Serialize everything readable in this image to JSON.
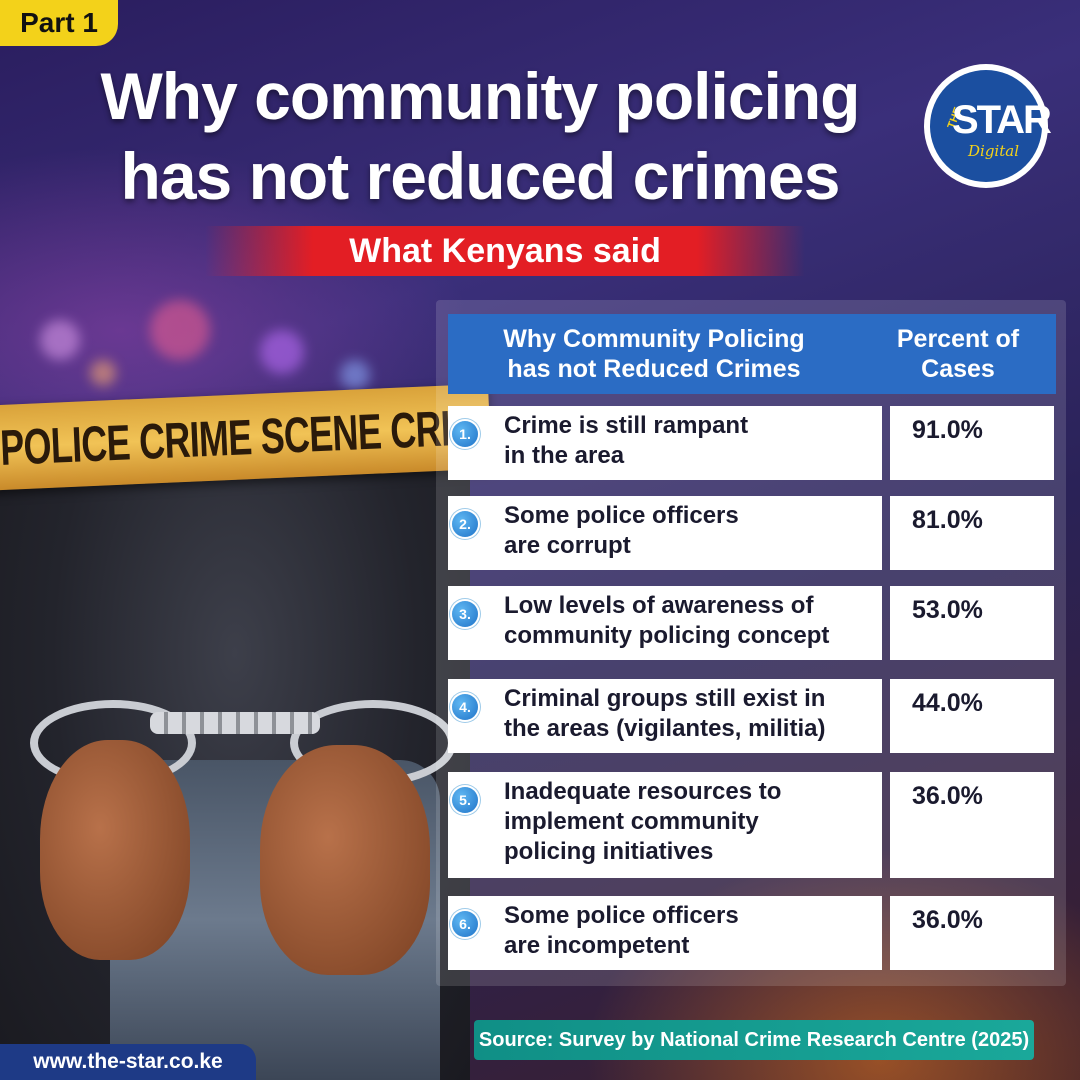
{
  "part_tag": "Part 1",
  "headline": {
    "line1": "Why community policing",
    "line2": "has not reduced crimes"
  },
  "subtitle": "What Kenyans said",
  "logo": {
    "the": "THE",
    "name": "STAR",
    "tagline": "Digital"
  },
  "background": {
    "tape_text": "POLICE CRIME SCENE   CRIM"
  },
  "table": {
    "headers": {
      "reason": "Why Community Policing has not Reduced Crimes",
      "percent": "Percent of Cases"
    },
    "rows": [
      {
        "num": "1.",
        "lines": [
          "Crime is still rampant",
          "in the area"
        ],
        "percent": "91.0%"
      },
      {
        "num": "2.",
        "lines": [
          "Some police officers",
          "are corrupt"
        ],
        "percent": "81.0%"
      },
      {
        "num": "3.",
        "lines": [
          "Low levels of awareness of",
          "community policing concept"
        ],
        "percent": "53.0%"
      },
      {
        "num": "4.",
        "lines": [
          "Criminal groups still exist in",
          "the areas (vigilantes, militia)"
        ],
        "percent": "44.0%"
      },
      {
        "num": "5.",
        "lines": [
          "Inadequate resources to",
          "implement community",
          "policing initiatives"
        ],
        "percent": "36.0%"
      },
      {
        "num": "6.",
        "lines": [
          "Some police officers",
          "are incompetent"
        ],
        "percent": "36.0%"
      }
    ]
  },
  "source": "Source: Survey by National Crime Research Centre (2025)",
  "website": "www.the-star.co.ke",
  "colors": {
    "tag_yellow": "#f3d21a",
    "subtitle_red": "#e31e24",
    "header_blue": "#2b6cc4",
    "source_teal": "#108f86",
    "url_navy": "#1e3a86"
  }
}
